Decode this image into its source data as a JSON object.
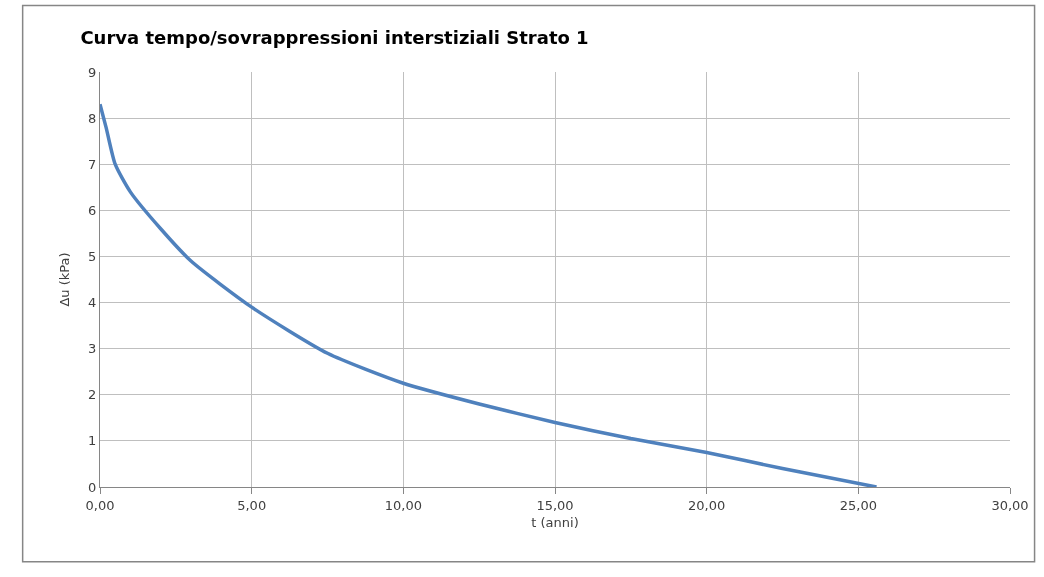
{
  "chart_data": {
    "type": "line",
    "title": "Curva tempo/sovrappressioni interstiziali Strato 1",
    "xlabel": "t (anni)",
    "ylabel": "Δu (kPa)",
    "x": [
      0,
      0.2,
      0.5,
      1,
      2,
      3,
      5,
      7.5,
      10,
      12.5,
      15,
      17.5,
      20,
      22.5,
      25.6
    ],
    "series": [
      {
        "color": "#4f81bd",
        "values": [
          8.3,
          7.8,
          7.0,
          6.4,
          5.6,
          4.9,
          3.9,
          2.9,
          2.25,
          1.8,
          1.4,
          1.05,
          0.75,
          0.4,
          0
        ]
      }
    ],
    "xlim": [
      0,
      30
    ],
    "xticks": [
      {
        "value": 0,
        "label": "0,00"
      },
      {
        "value": 5,
        "label": "5,00"
      },
      {
        "value": 10,
        "label": "10,00"
      },
      {
        "value": 15,
        "label": "15,00"
      },
      {
        "value": 20,
        "label": "20,00"
      },
      {
        "value": 25,
        "label": "25,00"
      },
      {
        "value": 30,
        "label": "30,00"
      }
    ],
    "ylim": [
      0,
      9
    ],
    "yticks": [
      0,
      1,
      2,
      3,
      4,
      5,
      6,
      7,
      8,
      9
    ],
    "grid": true,
    "marker": "none",
    "line_style": "solid"
  }
}
